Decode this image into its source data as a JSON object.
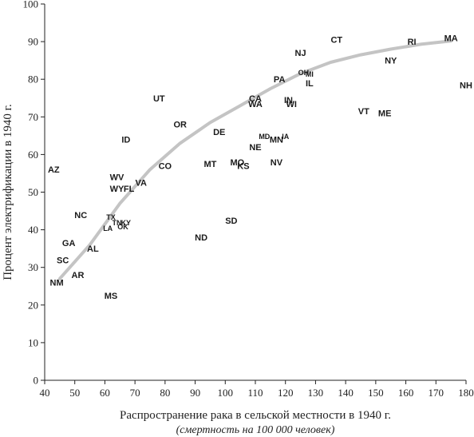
{
  "chart_data": {
    "type": "scatter",
    "xlabel": "Распространение рака в сельской местности в 1940 г.",
    "xlabel_sub": "(смертность на 100 000 человек)",
    "ylabel": "Процент электрификации в 1940 г.",
    "xlim": [
      40,
      180
    ],
    "ylim": [
      0,
      100
    ],
    "xticks": [
      40,
      50,
      60,
      70,
      80,
      90,
      100,
      110,
      120,
      130,
      140,
      150,
      160,
      170,
      180
    ],
    "yticks": [
      0,
      10,
      20,
      30,
      40,
      50,
      60,
      70,
      80,
      90,
      100
    ],
    "grid": false,
    "points": [
      {
        "label": "MA",
        "x": 175,
        "y": 91
      },
      {
        "label": "RI",
        "x": 162,
        "y": 90
      },
      {
        "label": "CT",
        "x": 137,
        "y": 90.5
      },
      {
        "label": "NJ",
        "x": 125,
        "y": 87
      },
      {
        "label": "NY",
        "x": 155,
        "y": 85
      },
      {
        "label": "NH",
        "x": 180,
        "y": 78.5
      },
      {
        "label": "OH",
        "x": 126,
        "y": 82
      },
      {
        "label": "MI",
        "x": 128,
        "y": 81.5
      },
      {
        "label": "PA",
        "x": 118,
        "y": 80
      },
      {
        "label": "IL",
        "x": 128,
        "y": 79
      },
      {
        "label": "UT",
        "x": 78,
        "y": 75
      },
      {
        "label": "CA",
        "x": 110,
        "y": 75
      },
      {
        "label": "WA",
        "x": 110,
        "y": 73.5
      },
      {
        "label": "IN",
        "x": 121,
        "y": 74.5
      },
      {
        "label": "WI",
        "x": 122,
        "y": 73.5
      },
      {
        "label": "VT",
        "x": 146,
        "y": 71.5
      },
      {
        "label": "ME",
        "x": 153,
        "y": 71
      },
      {
        "label": "OR",
        "x": 85,
        "y": 68
      },
      {
        "label": "DE",
        "x": 98,
        "y": 66
      },
      {
        "label": "ID",
        "x": 67,
        "y": 64
      },
      {
        "label": "MD",
        "x": 113,
        "y": 65
      },
      {
        "label": "IA",
        "x": 120,
        "y": 65
      },
      {
        "label": "MN",
        "x": 117,
        "y": 64
      },
      {
        "label": "NE",
        "x": 110,
        "y": 62
      },
      {
        "label": "MO",
        "x": 104,
        "y": 58
      },
      {
        "label": "KS",
        "x": 106,
        "y": 57
      },
      {
        "label": "NV",
        "x": 117,
        "y": 58
      },
      {
        "label": "MT",
        "x": 95,
        "y": 57.5
      },
      {
        "label": "CO",
        "x": 80,
        "y": 57
      },
      {
        "label": "AZ",
        "x": 43,
        "y": 56
      },
      {
        "label": "WV",
        "x": 64,
        "y": 54
      },
      {
        "label": "VA",
        "x": 72,
        "y": 52.5
      },
      {
        "label": "WY",
        "x": 64,
        "y": 51
      },
      {
        "label": "FL",
        "x": 68,
        "y": 51
      },
      {
        "label": "NC",
        "x": 52,
        "y": 44
      },
      {
        "label": "SD",
        "x": 102,
        "y": 42.5
      },
      {
        "label": "TX",
        "x": 62,
        "y": 43.5
      },
      {
        "label": "TN",
        "x": 64,
        "y": 42
      },
      {
        "label": "KY",
        "x": 67,
        "y": 42
      },
      {
        "label": "LA",
        "x": 61,
        "y": 40.5
      },
      {
        "label": "OK",
        "x": 66,
        "y": 41
      },
      {
        "label": "ND",
        "x": 92,
        "y": 38
      },
      {
        "label": "GA",
        "x": 48,
        "y": 36.5
      },
      {
        "label": "AL",
        "x": 56,
        "y": 35
      },
      {
        "label": "SC",
        "x": 46,
        "y": 32
      },
      {
        "label": "AR",
        "x": 51,
        "y": 28
      },
      {
        "label": "NM",
        "x": 44,
        "y": 26
      },
      {
        "label": "MS",
        "x": 62,
        "y": 22.5
      }
    ],
    "trend_line": [
      [
        45,
        27
      ],
      [
        55,
        36
      ],
      [
        65,
        47
      ],
      [
        75,
        56
      ],
      [
        85,
        63
      ],
      [
        95,
        68.5
      ],
      [
        105,
        73
      ],
      [
        115,
        77.5
      ],
      [
        125,
        81.5
      ],
      [
        135,
        84.5
      ],
      [
        145,
        86.5
      ],
      [
        155,
        88
      ],
      [
        165,
        89.3
      ],
      [
        175,
        90.2
      ]
    ]
  }
}
